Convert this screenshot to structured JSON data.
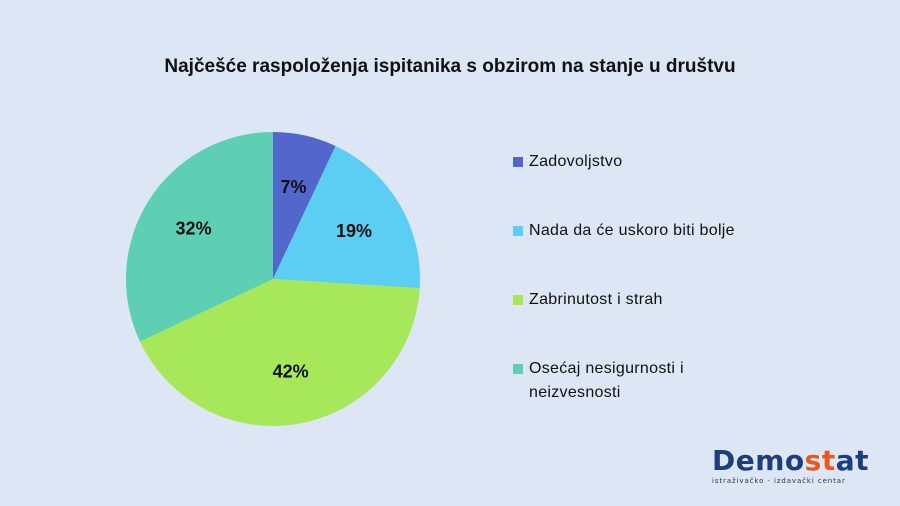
{
  "chart_data": {
    "type": "pie",
    "title": "Najčešće raspoloženja ispitanika s obzirom na stanje u društvu",
    "legend_position": "right",
    "slices": [
      {
        "label": "Zadovoljstvo",
        "value": 7,
        "display": "7%",
        "color": "#5366cc"
      },
      {
        "label": "Nada da će uskoro biti bolje",
        "value": 19,
        "display": "19%",
        "color": "#5dcef3"
      },
      {
        "label": "Zabrinutost i strah",
        "value": 42,
        "display": "42%",
        "color": "#a6e85a"
      },
      {
        "label": "Osećaj nesigurnosti i neizvesnosti",
        "value": 32,
        "display": "32%",
        "color": "#5ecfb2"
      }
    ]
  },
  "logo": {
    "word_start": "Demo",
    "word_accent": "st",
    "word_end": "at",
    "tagline": "istraživačko - izdavački centar",
    "brand_color": "#1d3e7a",
    "accent_color": "#e8571e"
  }
}
